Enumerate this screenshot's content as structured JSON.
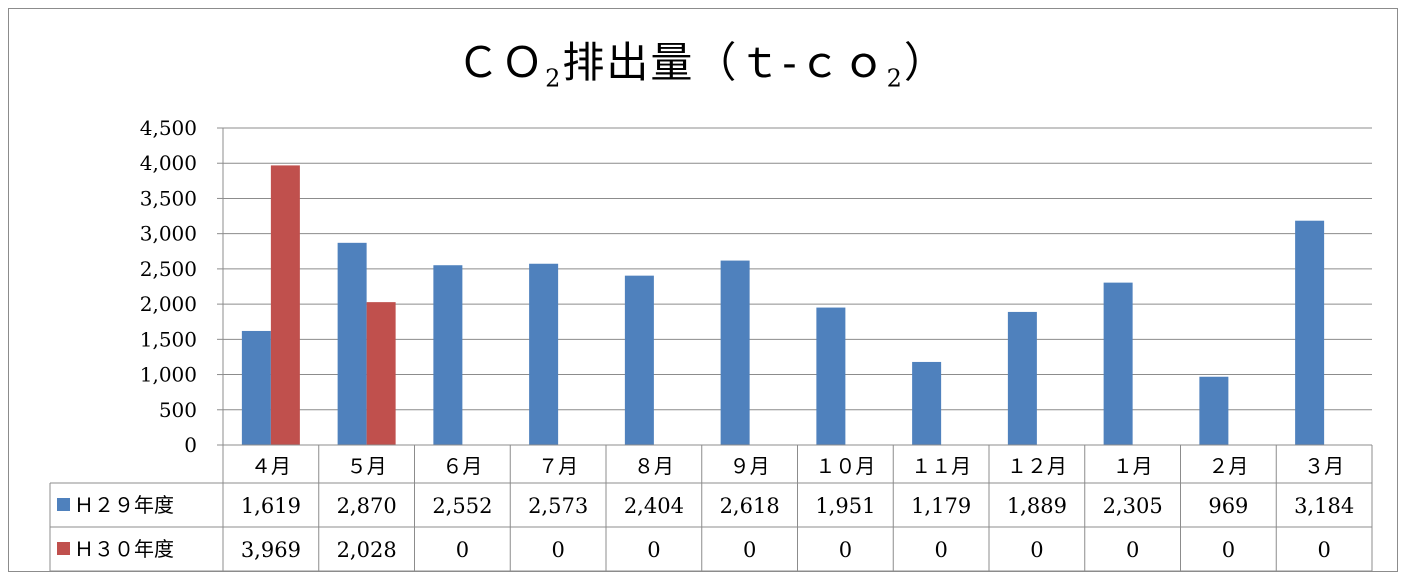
{
  "chart_data": {
    "type": "bar",
    "title_main": "ＣＯ",
    "title_sub1": "2",
    "title_mid": "排出量（ｔ-ｃｏ",
    "title_sub2": "2",
    "title_end": "）",
    "categories": [
      "４月",
      "５月",
      "６月",
      "７月",
      "８月",
      "９月",
      "１０月",
      "１１月",
      "１２月",
      "１月",
      "２月",
      "３月"
    ],
    "series": [
      {
        "name": "Ｈ２９年度",
        "color": "#4f81bd",
        "values": [
          1619,
          2870,
          2552,
          2573,
          2404,
          2618,
          1951,
          1179,
          1889,
          2305,
          969,
          3184
        ],
        "labels": [
          "1,619",
          "2,870",
          "2,552",
          "2,573",
          "2,404",
          "2,618",
          "1,951",
          "1,179",
          "1,889",
          "2,305",
          "969",
          "3,184"
        ]
      },
      {
        "name": "Ｈ３０年度",
        "color": "#c0504d",
        "values": [
          3969,
          2028,
          0,
          0,
          0,
          0,
          0,
          0,
          0,
          0,
          0,
          0
        ],
        "labels": [
          "3,969",
          "2,028",
          "0",
          "0",
          "0",
          "0",
          "0",
          "0",
          "0",
          "0",
          "0",
          "0"
        ]
      }
    ],
    "y_ticks": [
      "0",
      "500",
      "1,000",
      "1,500",
      "2,000",
      "2,500",
      "3,000",
      "3,500",
      "4,000",
      "4,500"
    ],
    "ylim": [
      0,
      4500
    ],
    "grid": true,
    "legend": "data-table"
  }
}
